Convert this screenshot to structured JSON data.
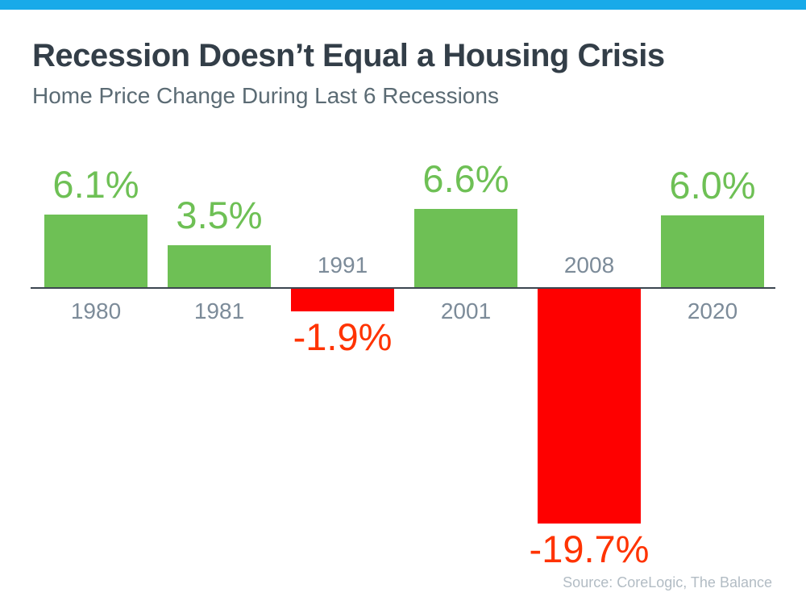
{
  "page": {
    "accent_bar_color": "#18aae9",
    "background_color": "#ffffff"
  },
  "header": {
    "title": "Recession Doesn’t Equal a Housing Crisis",
    "subtitle": "Home Price Change During Last 6 Recessions"
  },
  "chart_data": {
    "type": "bar",
    "title": "Home Price Change During Last 6 Recessions",
    "categories": [
      "1980",
      "1981",
      "1991",
      "2001",
      "2008",
      "2020"
    ],
    "values": [
      6.1,
      3.5,
      -1.9,
      6.6,
      -19.7,
      6.0
    ],
    "value_labels": [
      "6.1%",
      "3.5%",
      "-1.9%",
      "6.6%",
      "-19.7%",
      "6.0%"
    ],
    "xlabel": "",
    "ylabel": "",
    "ylim": [
      -22,
      8
    ],
    "grid": false,
    "legend": false,
    "positive_color": "#6ec055",
    "negative_color": "#fe0000",
    "positive_label_color": "#6ec055",
    "negative_label_color": "#ff3300",
    "category_label_color": "#7c8b99",
    "axis_color": "#3c4650"
  },
  "footer": {
    "source": "Source: CoreLogic, The Balance"
  }
}
